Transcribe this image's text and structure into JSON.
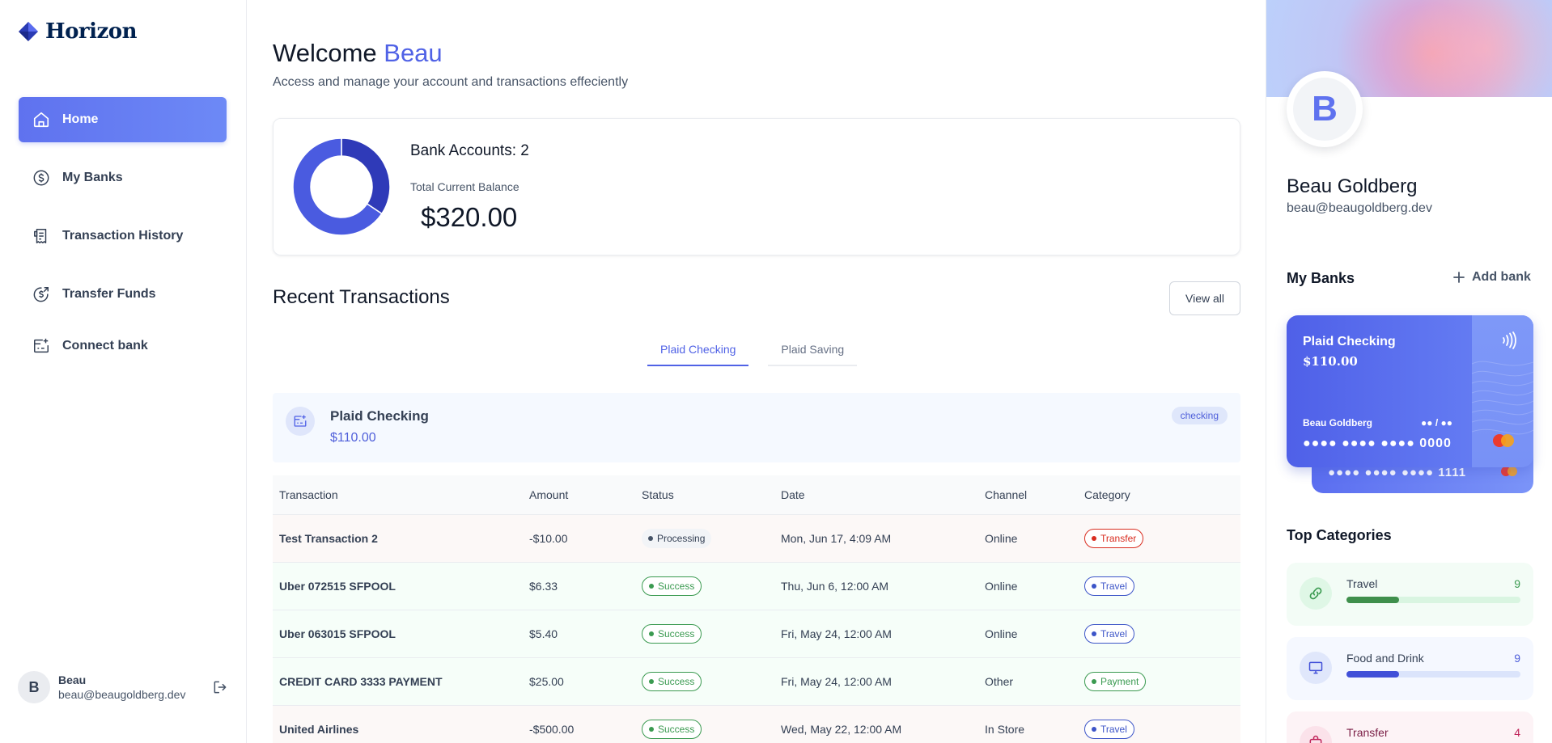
{
  "app": {
    "name": "Horizon"
  },
  "sidebar": {
    "items": [
      {
        "label": "Home",
        "icon": "home-icon",
        "active": true
      },
      {
        "label": "My Banks",
        "icon": "dollar-circle-icon"
      },
      {
        "label": "Transaction History",
        "icon": "receipt-icon"
      },
      {
        "label": "Transfer Funds",
        "icon": "money-send-icon"
      },
      {
        "label": "Connect bank",
        "icon": "connect-bank-icon"
      }
    ],
    "user": {
      "initial": "B",
      "name": "Beau",
      "email": "beau@beaugoldberg.dev"
    }
  },
  "header": {
    "welcome_prefix": "Welcome",
    "user_first_name": "Beau",
    "subtitle": "Access and manage your account and transactions effeciently"
  },
  "balance": {
    "accounts_label": "Bank Accounts: 2",
    "total_label": "Total Current Balance",
    "total_amount": "$320.00",
    "donut": [
      {
        "name": "Plaid Checking",
        "value": 110,
        "color": "#2f3ab8"
      },
      {
        "name": "Plaid Saving",
        "value": 210,
        "color": "#4a5be0"
      }
    ]
  },
  "recent": {
    "title": "Recent Transactions",
    "view_all": "View all",
    "tabs": [
      {
        "label": "Plaid Checking",
        "active": true
      },
      {
        "label": "Plaid Saving",
        "active": false
      }
    ],
    "account": {
      "name": "Plaid Checking",
      "balance": "$110.00",
      "type": "checking"
    },
    "columns": [
      "Transaction",
      "Amount",
      "Status",
      "Date",
      "Channel",
      "Category"
    ],
    "rows": [
      {
        "name": "Test Transaction 2",
        "amount": "-$10.00",
        "status": "Processing",
        "date": "Mon, Jun 17, 4:09 AM",
        "channel": "Online",
        "category": "Transfer"
      },
      {
        "name": "Uber 072515 SFPOOL",
        "amount": "$6.33",
        "status": "Success",
        "date": "Thu, Jun 6, 12:00 AM",
        "channel": "Online",
        "category": "Travel"
      },
      {
        "name": "Uber 063015 SFPOOL",
        "amount": "$5.40",
        "status": "Success",
        "date": "Fri, May 24, 12:00 AM",
        "channel": "Online",
        "category": "Travel"
      },
      {
        "name": "CREDIT CARD 3333 PAYMENT",
        "amount": "$25.00",
        "status": "Success",
        "date": "Fri, May 24, 12:00 AM",
        "channel": "Other",
        "category": "Payment"
      },
      {
        "name": "United Airlines",
        "amount": "-$500.00",
        "status": "Success",
        "date": "Wed, May 22, 12:00 AM",
        "channel": "In Store",
        "category": "Travel"
      }
    ]
  },
  "profile": {
    "initial": "B",
    "name": "Beau Goldberg",
    "email": "beau@beaugoldberg.dev"
  },
  "my_banks": {
    "title": "My Banks",
    "add_label": "Add bank",
    "card_front": {
      "bank": "Plaid Checking",
      "balance": "$110.00",
      "owner": "Beau Goldberg",
      "expiry": "●● / ●●",
      "number": "●●●● ●●●● ●●●● 0000"
    },
    "card_back": {
      "number": "●●●● ●●●● ●●●● 1111"
    }
  },
  "top_categories": {
    "title": "Top Categories",
    "items": [
      {
        "name": "Travel",
        "count": "9",
        "fraction": 0.3
      },
      {
        "name": "Food and Drink",
        "count": "9",
        "fraction": 0.3
      },
      {
        "name": "Transfer",
        "count": "4"
      }
    ]
  }
}
